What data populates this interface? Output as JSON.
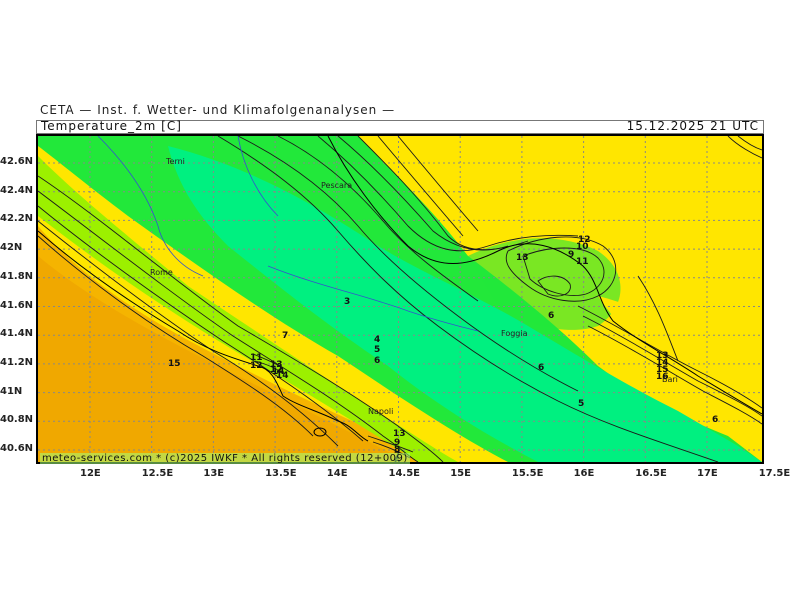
{
  "header": {
    "institute": "CETA — Inst. f. Wetter- und Klimafolgenanalysen —",
    "field_title": "Temperature_2m [C]",
    "valid_time": "15.12.2025 21 UTC"
  },
  "axes": {
    "lon_labels": [
      "12E",
      "12.5E",
      "13E",
      "13.5E",
      "14E",
      "14.5E",
      "15E",
      "15.5E",
      "16E",
      "16.5E",
      "17E",
      "17.5E"
    ],
    "lat_labels": [
      "42.6N",
      "42.4N",
      "42.2N",
      "42N",
      "41.8N",
      "41.6N",
      "41.4N",
      "41.2N",
      "41N",
      "40.8N",
      "40.6N"
    ]
  },
  "cities": [
    "Terni",
    "Pescara",
    "Rome",
    "Foggia",
    "Napoli",
    "Bari"
  ],
  "contour_labels": [
    "3",
    "7",
    "4",
    "5",
    "6",
    "15",
    "11",
    "12",
    "13",
    "14",
    "12",
    "14",
    "13",
    "9",
    "8",
    "7",
    "6",
    "5",
    "6",
    "6",
    "13",
    "12",
    "13",
    "14",
    "15",
    "16",
    "6",
    "9",
    "10",
    "11"
  ],
  "colors": {
    "warm": "#ffe600",
    "orange": "#f5b400",
    "lime": "#9cf000",
    "green": "#22e83a",
    "teal": "#00f080",
    "contour": "#1a1a1a",
    "grid": "#888888",
    "coast": "#000000",
    "border": "#3355cc"
  },
  "footer": "meteo-services.com * (c)2025 IWKF * All rights reserved (12+009)"
}
